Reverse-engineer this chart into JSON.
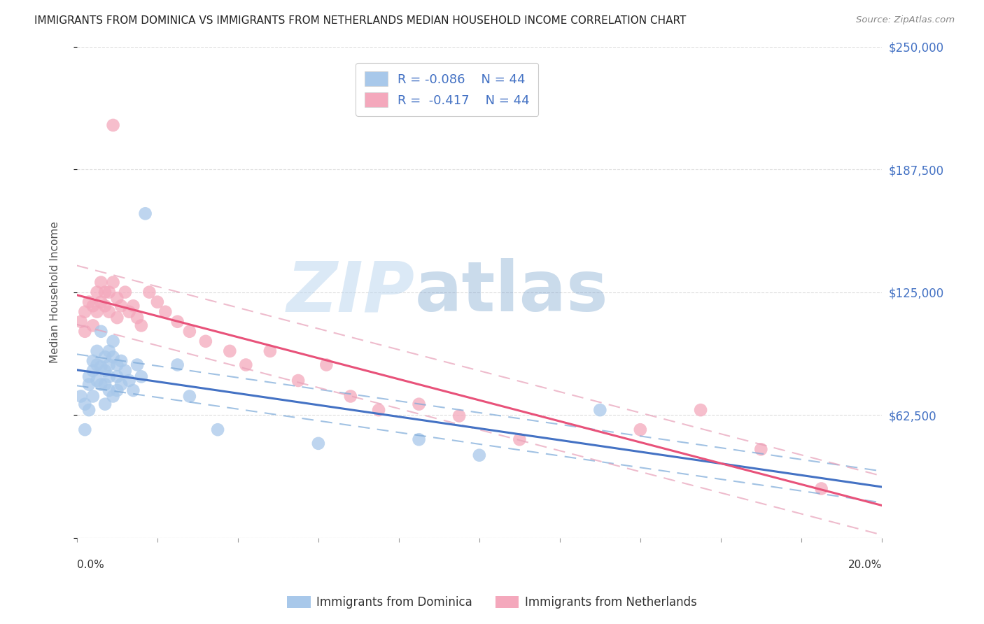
{
  "title": "IMMIGRANTS FROM DOMINICA VS IMMIGRANTS FROM NETHERLANDS MEDIAN HOUSEHOLD INCOME CORRELATION CHART",
  "source": "Source: ZipAtlas.com",
  "ylabel": "Median Household Income",
  "y_ticks": [
    0,
    62500,
    125000,
    187500,
    250000
  ],
  "y_tick_labels": [
    "",
    "$62,500",
    "$125,000",
    "$187,500",
    "$250,000"
  ],
  "x_min": 0.0,
  "x_max": 0.2,
  "y_min": 0,
  "y_max": 250000,
  "watermark_zip": "ZIP",
  "watermark_atlas": "atlas",
  "legend_r1": "R = -0.086",
  "legend_n1": "N = 44",
  "legend_r2": "R =  -0.417",
  "legend_n2": "N = 44",
  "blue_color": "#a8c8ea",
  "pink_color": "#f4a8bc",
  "line_blue": "#4472c4",
  "line_pink": "#e8527a",
  "dash_blue": "#7aa8d8",
  "dash_pink": "#e8a0b8",
  "legend_text_color": "#4472c4",
  "blue_scatter_x": [
    0.001,
    0.002,
    0.002,
    0.003,
    0.003,
    0.003,
    0.004,
    0.004,
    0.004,
    0.005,
    0.005,
    0.005,
    0.006,
    0.006,
    0.006,
    0.007,
    0.007,
    0.007,
    0.007,
    0.008,
    0.008,
    0.008,
    0.008,
    0.009,
    0.009,
    0.009,
    0.01,
    0.01,
    0.01,
    0.011,
    0.011,
    0.012,
    0.013,
    0.014,
    0.015,
    0.016,
    0.017,
    0.025,
    0.028,
    0.035,
    0.06,
    0.085,
    0.1,
    0.13
  ],
  "blue_scatter_y": [
    72000,
    68000,
    55000,
    78000,
    82000,
    65000,
    90000,
    85000,
    72000,
    88000,
    80000,
    95000,
    87000,
    78000,
    105000,
    92000,
    85000,
    78000,
    68000,
    95000,
    88000,
    82000,
    75000,
    100000,
    92000,
    72000,
    88000,
    82000,
    75000,
    90000,
    78000,
    85000,
    80000,
    75000,
    88000,
    82000,
    165000,
    88000,
    72000,
    55000,
    48000,
    50000,
    42000,
    65000
  ],
  "pink_scatter_x": [
    0.001,
    0.002,
    0.002,
    0.003,
    0.004,
    0.004,
    0.005,
    0.005,
    0.006,
    0.006,
    0.007,
    0.007,
    0.008,
    0.008,
    0.009,
    0.009,
    0.01,
    0.01,
    0.011,
    0.012,
    0.013,
    0.014,
    0.015,
    0.016,
    0.018,
    0.02,
    0.022,
    0.025,
    0.028,
    0.032,
    0.038,
    0.042,
    0.048,
    0.055,
    0.062,
    0.068,
    0.075,
    0.085,
    0.095,
    0.11,
    0.14,
    0.155,
    0.17,
    0.185
  ],
  "pink_scatter_y": [
    110000,
    105000,
    115000,
    120000,
    108000,
    118000,
    125000,
    115000,
    130000,
    120000,
    118000,
    125000,
    115000,
    125000,
    210000,
    130000,
    122000,
    112000,
    118000,
    125000,
    115000,
    118000,
    112000,
    108000,
    125000,
    120000,
    115000,
    110000,
    105000,
    100000,
    95000,
    88000,
    95000,
    80000,
    88000,
    72000,
    65000,
    68000,
    62000,
    50000,
    55000,
    65000,
    45000,
    25000
  ],
  "background_color": "#ffffff",
  "grid_color": "#dddddd"
}
